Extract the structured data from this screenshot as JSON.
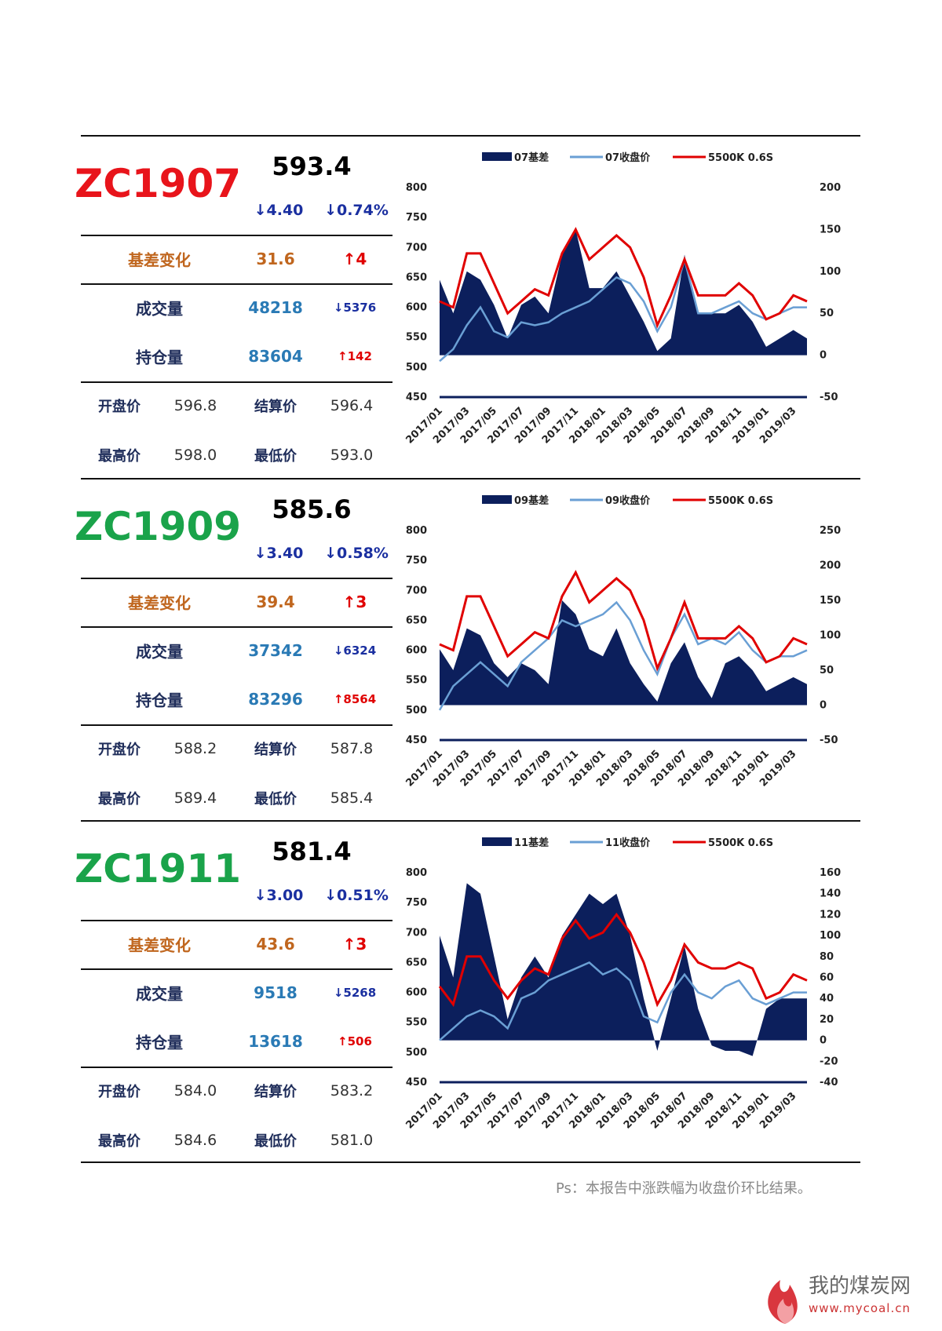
{
  "panels": [
    {
      "contract": "ZC1907",
      "color": "#e8141b",
      "price": "593.4",
      "change": "↓4.40",
      "change_pct": "↓0.74%",
      "basis": {
        "label": "基差变化",
        "value": "31.6",
        "change": "↑4"
      },
      "volume": {
        "label": "成交量",
        "value": "48218",
        "change": "↓5376"
      },
      "open_interest": {
        "label": "持仓量",
        "value": "83604",
        "change": "↑142"
      },
      "open": {
        "label": "开盘价",
        "value": "596.8"
      },
      "settle": {
        "label": "结算价",
        "value": "596.4"
      },
      "high": {
        "label": "最高价",
        "value": "598.0"
      },
      "low": {
        "label": "最低价",
        "value": "593.0"
      }
    },
    {
      "contract": "ZC1909",
      "color": "#1aa34a",
      "price": "585.6",
      "change": "↓3.40",
      "change_pct": "↓0.58%",
      "basis": {
        "label": "基差变化",
        "value": "39.4",
        "change": "↑3"
      },
      "volume": {
        "label": "成交量",
        "value": "37342",
        "change": "↓6324"
      },
      "open_interest": {
        "label": "持仓量",
        "value": "83296",
        "change": "↑8564"
      },
      "open": {
        "label": "开盘价",
        "value": "588.2"
      },
      "settle": {
        "label": "结算价",
        "value": "587.8"
      },
      "high": {
        "label": "最高价",
        "value": "589.4"
      },
      "low": {
        "label": "最低价",
        "value": "585.4"
      }
    },
    {
      "contract": "ZC1911",
      "color": "#1aa34a",
      "price": "581.4",
      "change": "↓3.00",
      "change_pct": "↓0.51%",
      "basis": {
        "label": "基差变化",
        "value": "43.6",
        "change": "↑3"
      },
      "volume": {
        "label": "成交量",
        "value": "9518",
        "change": "↓5268"
      },
      "open_interest": {
        "label": "持仓量",
        "value": "13618",
        "change": "↑506"
      },
      "open": {
        "label": "开盘价",
        "value": "584.0"
      },
      "settle": {
        "label": "结算价",
        "value": "583.2"
      },
      "high": {
        "label": "最高价",
        "value": "584.6"
      },
      "low": {
        "label": "最低价",
        "value": "581.0"
      }
    }
  ],
  "chart_data": [
    {
      "type": "combo",
      "categories": [
        "2017/01",
        null,
        "2017/03",
        null,
        "2017/05",
        null,
        "2017/07",
        null,
        "2017/09",
        null,
        "2017/11",
        null,
        "2018/01",
        null,
        "2018/03",
        null,
        "2018/05",
        null,
        "2018/07",
        null,
        "2018/09",
        null,
        "2018/11",
        null,
        "2019/01",
        null,
        "2019/03",
        null
      ],
      "ylim": [
        450,
        800
      ],
      "yticks": [
        450,
        500,
        550,
        600,
        650,
        700,
        750,
        800
      ],
      "y2lim": [
        -50,
        200
      ],
      "y2ticks": [
        -50,
        0,
        50,
        100,
        150,
        200
      ],
      "series": [
        {
          "name": "07基差",
          "color": "#0c1f5c",
          "axis": "y2",
          "style": "area",
          "values": [
            90,
            50,
            100,
            90,
            60,
            20,
            60,
            70,
            50,
            120,
            150,
            80,
            80,
            100,
            70,
            40,
            5,
            20,
            120,
            50,
            50,
            50,
            60,
            40,
            10,
            20,
            30,
            20
          ]
        },
        {
          "name": "07收盘价",
          "color": "#6a9fd4",
          "style": "line",
          "values": [
            510,
            530,
            570,
            600,
            560,
            550,
            575,
            570,
            575,
            590,
            600,
            610,
            630,
            650,
            640,
            610,
            560,
            600,
            680,
            590,
            590,
            600,
            610,
            590,
            580,
            590,
            600,
            600
          ]
        },
        {
          "name": "5500K 0.6S",
          "color": "#e00000",
          "style": "line",
          "values": [
            610,
            600,
            690,
            690,
            640,
            590,
            610,
            630,
            620,
            690,
            730,
            680,
            700,
            720,
            700,
            650,
            570,
            620,
            680,
            620,
            620,
            620,
            640,
            620,
            580,
            590,
            620,
            610
          ]
        }
      ]
    },
    {
      "type": "combo",
      "categories": [
        "2017/01",
        null,
        "2017/03",
        null,
        "2017/05",
        null,
        "2017/07",
        null,
        "2017/09",
        null,
        "2017/11",
        null,
        "2018/01",
        null,
        "2018/03",
        null,
        "2018/05",
        null,
        "2018/07",
        null,
        "2018/09",
        null,
        "2018/11",
        null,
        "2019/01",
        null,
        "2019/03",
        null
      ],
      "ylim": [
        450,
        800
      ],
      "yticks": [
        450,
        500,
        550,
        600,
        650,
        700,
        750,
        800
      ],
      "y2lim": [
        -50,
        250
      ],
      "y2ticks": [
        -50,
        0,
        50,
        100,
        150,
        200,
        250
      ],
      "series": [
        {
          "name": "09基差",
          "color": "#0c1f5c",
          "axis": "y2",
          "style": "area",
          "values": [
            80,
            50,
            110,
            100,
            60,
            40,
            60,
            50,
            30,
            150,
            130,
            80,
            70,
            110,
            60,
            30,
            5,
            60,
            90,
            40,
            10,
            60,
            70,
            50,
            20,
            30,
            40,
            30
          ]
        },
        {
          "name": "09收盘价",
          "color": "#6a9fd4",
          "style": "line",
          "values": [
            500,
            540,
            560,
            580,
            560,
            540,
            580,
            600,
            620,
            650,
            640,
            650,
            660,
            680,
            650,
            600,
            560,
            620,
            660,
            610,
            620,
            610,
            630,
            600,
            580,
            590,
            590,
            600
          ]
        },
        {
          "name": "5500K 0.6S",
          "color": "#e00000",
          "style": "line",
          "values": [
            610,
            600,
            690,
            690,
            640,
            590,
            610,
            630,
            620,
            690,
            730,
            680,
            700,
            720,
            700,
            650,
            570,
            620,
            680,
            620,
            620,
            620,
            640,
            620,
            580,
            590,
            620,
            610
          ]
        }
      ]
    },
    {
      "type": "combo",
      "categories": [
        "2017/01",
        null,
        "2017/03",
        null,
        "2017/05",
        null,
        "2017/07",
        null,
        "2017/09",
        null,
        "2017/11",
        null,
        "2018/01",
        null,
        "2018/03",
        null,
        "2018/05",
        null,
        "2018/07",
        null,
        "2018/09",
        null,
        "2018/11",
        null,
        "2019/01",
        null,
        "2019/03",
        null
      ],
      "ylim": [
        450,
        800
      ],
      "yticks": [
        450,
        500,
        550,
        600,
        650,
        700,
        750,
        800
      ],
      "y2lim": [
        -40,
        160
      ],
      "y2ticks": [
        -40,
        -20,
        0,
        20,
        40,
        60,
        80,
        100,
        120,
        140,
        160
      ],
      "series": [
        {
          "name": "11基差",
          "color": "#0c1f5c",
          "axis": "y2",
          "style": "area",
          "values": [
            100,
            60,
            150,
            140,
            80,
            20,
            60,
            80,
            60,
            100,
            120,
            140,
            130,
            140,
            100,
            40,
            -10,
            40,
            90,
            30,
            -5,
            -10,
            -10,
            -15,
            30,
            40,
            40,
            40
          ]
        },
        {
          "name": "11收盘价",
          "color": "#6a9fd4",
          "style": "line",
          "values": [
            520,
            540,
            560,
            570,
            560,
            540,
            590,
            600,
            620,
            630,
            640,
            650,
            630,
            640,
            620,
            560,
            550,
            600,
            630,
            600,
            590,
            610,
            620,
            590,
            580,
            590,
            600,
            600
          ]
        },
        {
          "name": "5500K 0.6S",
          "color": "#e00000",
          "style": "line",
          "values": [
            610,
            580,
            660,
            660,
            620,
            590,
            620,
            640,
            630,
            690,
            720,
            690,
            700,
            730,
            700,
            650,
            580,
            620,
            680,
            650,
            640,
            640,
            650,
            640,
            590,
            600,
            630,
            620
          ]
        }
      ]
    }
  ],
  "footer": {
    "note": "Ps：本报告中涨跌幅为收盘价环比结果。",
    "logo_name": "我的煤炭网",
    "logo_url": "www.mycoal.cn"
  }
}
